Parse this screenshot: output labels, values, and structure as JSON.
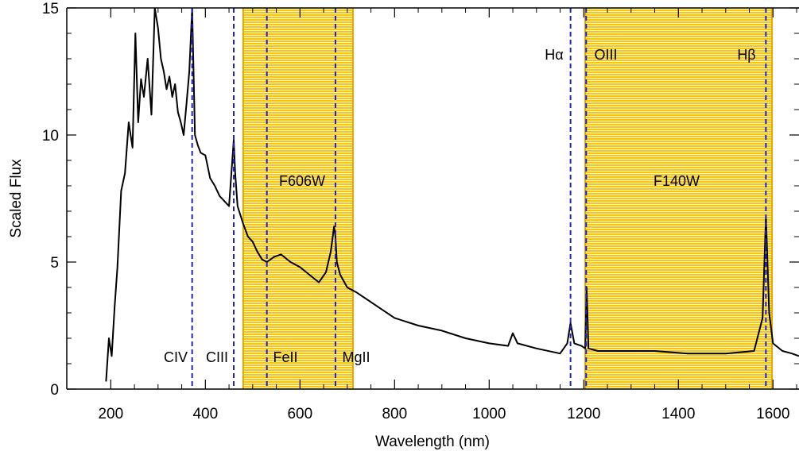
{
  "chart_data": {
    "type": "line",
    "xlabel": "Wavelength (nm)",
    "ylabel": "Scaled Flux",
    "xlim": [
      107,
      1655
    ],
    "ylim": [
      0,
      15
    ],
    "x_ticks": [
      200,
      400,
      600,
      800,
      1000,
      1200,
      1400,
      1600
    ],
    "y_ticks": [
      0,
      5,
      10,
      15
    ],
    "grid": false,
    "filter_bands": [
      {
        "name": "F606W",
        "x_start": 480,
        "x_end": 712,
        "color": "#f5c518"
      },
      {
        "name": "F140W",
        "x_start": 1203,
        "x_end": 1598,
        "color": "#f5c518"
      }
    ],
    "emission_lines": [
      {
        "name": "CIV",
        "x": 372
      },
      {
        "name": "CIII",
        "x": 460
      },
      {
        "name": "FeII",
        "x": 530
      },
      {
        "name": "MgII",
        "x": 675
      },
      {
        "name": "Hα",
        "x": 1172
      },
      {
        "name": "OIII",
        "x": 1205
      },
      {
        "name": "Hβ",
        "x": 1585
      }
    ],
    "line_color": "#2222bb",
    "series": [
      {
        "color": "#000000",
        "x": [
          190,
          196,
          202,
          208,
          214,
          222,
          230,
          238,
          246,
          252,
          258,
          264,
          270,
          278,
          286,
          293,
          300,
          306,
          312,
          318,
          324,
          330,
          336,
          342,
          348,
          354,
          360,
          366,
          372,
          378,
          384,
          390,
          400,
          410,
          420,
          430,
          440,
          450,
          457,
          460,
          463,
          468,
          480,
          490,
          500,
          510,
          520,
          530,
          545,
          560,
          580,
          600,
          620,
          640,
          655,
          665,
          672,
          675,
          678,
          685,
          700,
          720,
          760,
          800,
          850,
          900,
          950,
          1000,
          1040,
          1050,
          1060,
          1100,
          1150,
          1165,
          1172,
          1180,
          1195,
          1203,
          1206,
          1210,
          1230,
          1280,
          1350,
          1420,
          1500,
          1560,
          1578,
          1585,
          1592,
          1600,
          1620,
          1640,
          1655
        ],
        "y": [
          0.3,
          2.0,
          1.3,
          3.2,
          4.8,
          7.8,
          8.5,
          10.5,
          9.5,
          14.0,
          10.5,
          12.2,
          11.5,
          13.0,
          10.8,
          15.0,
          14.2,
          13.0,
          12.5,
          11.8,
          12.3,
          11.5,
          12.0,
          10.9,
          10.5,
          10.0,
          11.2,
          12.5,
          15.0,
          10.0,
          9.6,
          9.3,
          9.2,
          8.3,
          8.0,
          7.6,
          7.4,
          7.2,
          9.0,
          9.8,
          8.5,
          7.2,
          6.5,
          6.0,
          5.8,
          5.4,
          5.1,
          5.0,
          5.2,
          5.3,
          5.0,
          4.8,
          4.5,
          4.2,
          4.6,
          5.4,
          6.4,
          6.0,
          5.0,
          4.5,
          4.0,
          3.8,
          3.3,
          2.8,
          2.5,
          2.3,
          2.0,
          1.8,
          1.7,
          2.2,
          1.8,
          1.6,
          1.4,
          1.8,
          2.6,
          1.8,
          1.7,
          1.6,
          4.0,
          1.6,
          1.5,
          1.5,
          1.5,
          1.4,
          1.4,
          1.5,
          2.8,
          6.8,
          3.0,
          1.8,
          1.5,
          1.4,
          1.3
        ]
      }
    ]
  }
}
